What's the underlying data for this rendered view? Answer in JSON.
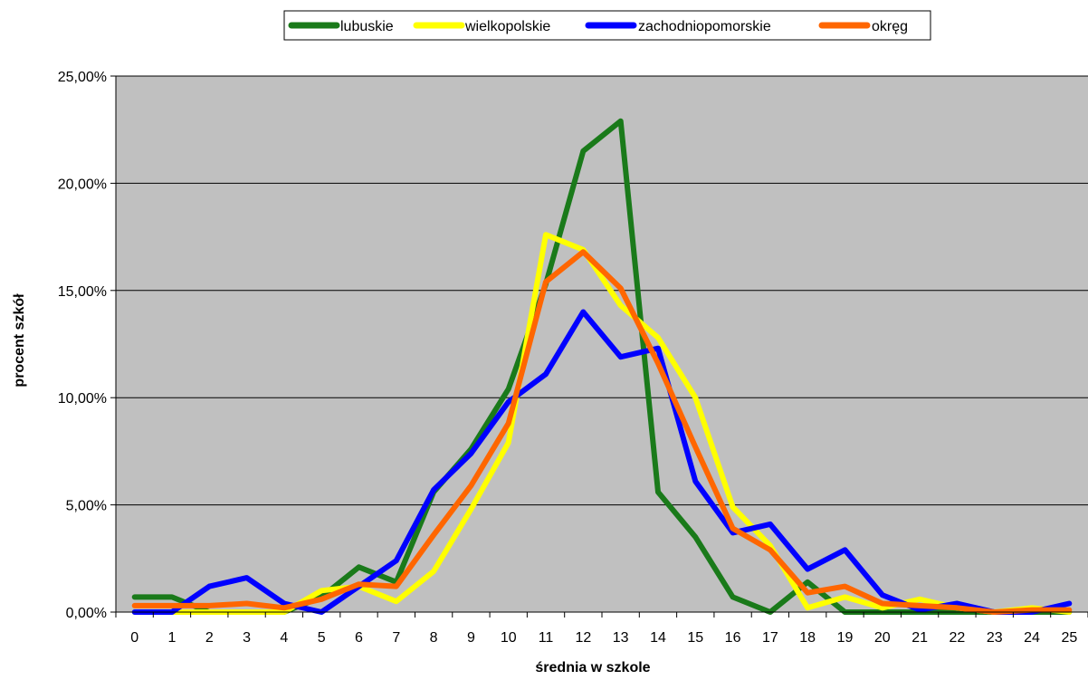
{
  "chart_data": {
    "type": "line",
    "xlabel": "średnia w szkole",
    "ylabel": "procent szkół",
    "x": [
      0,
      1,
      2,
      3,
      4,
      5,
      6,
      7,
      8,
      9,
      10,
      11,
      12,
      13,
      14,
      15,
      16,
      17,
      18,
      19,
      20,
      21,
      22,
      23,
      24,
      25
    ],
    "xlim": [
      0,
      25
    ],
    "ylim": [
      0,
      25
    ],
    "y_ticks": [
      0,
      5,
      10,
      15,
      20,
      25
    ],
    "y_tick_labels": [
      "0,00%",
      "5,00%",
      "10,00%",
      "15,00%",
      "20,00%",
      "25,00%"
    ],
    "grid": "horizontal",
    "legend_position": "top-center",
    "plot_background": "#c0c0c0",
    "series": [
      {
        "name": "lubuskie",
        "color": "#1a7a1a",
        "values": [
          0.7,
          0.7,
          0,
          0,
          0,
          0.7,
          2.1,
          1.4,
          5.6,
          7.6,
          10.4,
          15.3,
          21.5,
          22.9,
          5.6,
          3.5,
          0.7,
          0,
          1.4,
          0,
          0,
          0,
          0,
          0,
          0,
          0
        ]
      },
      {
        "name": "wielkopolskie",
        "color": "#ffff00",
        "values": [
          0,
          0,
          0,
          0,
          0,
          1.0,
          1.2,
          0.5,
          1.9,
          4.8,
          7.9,
          17.6,
          16.9,
          14.3,
          12.8,
          10.0,
          4.9,
          3.1,
          0.2,
          0.7,
          0.2,
          0.6,
          0.2,
          0,
          0.2,
          0
        ]
      },
      {
        "name": "zachodniopomorskie",
        "color": "#0000ff",
        "values": [
          0,
          0,
          1.2,
          1.6,
          0.4,
          0,
          1.2,
          2.4,
          5.7,
          7.4,
          9.8,
          11.1,
          14.0,
          11.9,
          12.3,
          6.1,
          3.7,
          4.1,
          2.0,
          2.9,
          0.8,
          0.1,
          0.4,
          0,
          0,
          0.4
        ]
      },
      {
        "name": "okręg",
        "color": "#ff6600",
        "values": [
          0.3,
          0.3,
          0.3,
          0.4,
          0.2,
          0.6,
          1.3,
          1.2,
          3.6,
          5.9,
          8.8,
          15.4,
          16.8,
          15.1,
          11.6,
          7.7,
          3.9,
          2.9,
          0.9,
          1.2,
          0.4,
          0.3,
          0.2,
          0,
          0.1,
          0.1
        ]
      }
    ]
  }
}
